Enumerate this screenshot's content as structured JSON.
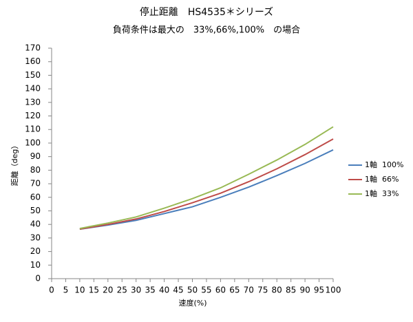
{
  "chart_data": {
    "type": "line",
    "title": "停止距離　HS4535＊シリーズ",
    "subtitle": "負荷条件は最大の　33%,66%,100%　の場合",
    "x_label": "速度(%)",
    "y_label": "距離（deg）",
    "x": [
      10,
      20,
      30,
      40,
      50,
      60,
      70,
      80,
      90,
      100
    ],
    "series": [
      {
        "name": "1軸  100%",
        "color": "#4a7ebb",
        "values": [
          36.5,
          39.5,
          43,
          48,
          53,
          60,
          67.5,
          76,
          85,
          95
        ]
      },
      {
        "name": "1軸  66%",
        "color": "#be4b48",
        "values": [
          36.5,
          40,
          44,
          49.5,
          56,
          63,
          71.5,
          81,
          91.5,
          103
        ]
      },
      {
        "name": "1軸  33%",
        "color": "#98b954",
        "values": [
          37,
          41,
          45.5,
          52,
          59,
          67,
          77,
          87.5,
          99,
          112
        ]
      }
    ],
    "xlim": [
      0,
      100
    ],
    "xticks": [
      0,
      5,
      10,
      15,
      20,
      25,
      30,
      35,
      40,
      45,
      50,
      55,
      60,
      65,
      70,
      75,
      80,
      85,
      90,
      95,
      100
    ],
    "ylim": [
      0,
      170
    ],
    "yticks": [
      0,
      10,
      20,
      30,
      40,
      50,
      60,
      70,
      80,
      90,
      100,
      110,
      120,
      130,
      140,
      150,
      160,
      170
    ],
    "grid": false,
    "legend": "right"
  }
}
